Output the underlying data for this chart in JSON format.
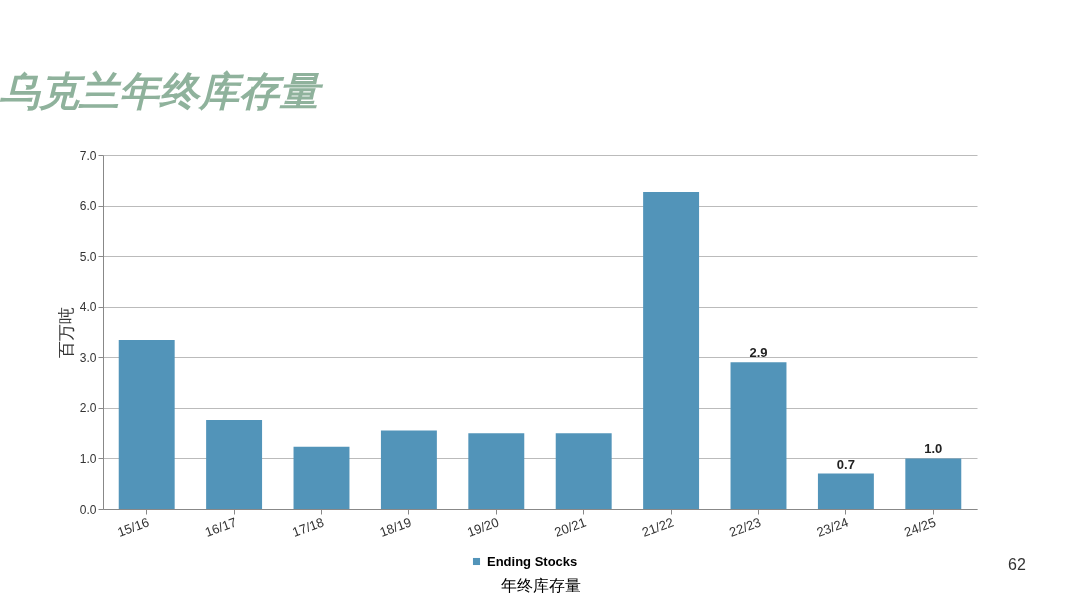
{
  "chart_data": {
    "type": "bar",
    "title": "乌克兰年终库存量",
    "xlabel": "年终库存量",
    "ylabel": "百万吨",
    "categories": [
      "15/16",
      "16/17",
      "17/18",
      "18/19",
      "19/20",
      "20/21",
      "21/22",
      "22/23",
      "23/24",
      "24/25"
    ],
    "series": [
      {
        "name": "Ending Stocks",
        "color": "#5294b9",
        "values": [
          3.34,
          1.76,
          1.23,
          1.55,
          1.5,
          1.5,
          6.27,
          2.9,
          0.7,
          1.0
        ],
        "value_labels": [
          null,
          null,
          null,
          null,
          null,
          null,
          null,
          "2.9",
          "0.7",
          "1.0"
        ]
      }
    ],
    "ylim": [
      0,
      7
    ],
    "yticks": [
      {
        "value": 0,
        "label": "0.0"
      },
      {
        "value": 1,
        "label": "1.0"
      },
      {
        "value": 2,
        "label": "2.0"
      },
      {
        "value": 3,
        "label": "3.0"
      },
      {
        "value": 4,
        "label": "4.0"
      },
      {
        "value": 5,
        "label": "5.0"
      },
      {
        "value": 6,
        "label": "6.0"
      },
      {
        "value": 7,
        "label": "7.0"
      }
    ],
    "grid": "y",
    "legend": "bottom",
    "annotations": [
      "62"
    ]
  }
}
